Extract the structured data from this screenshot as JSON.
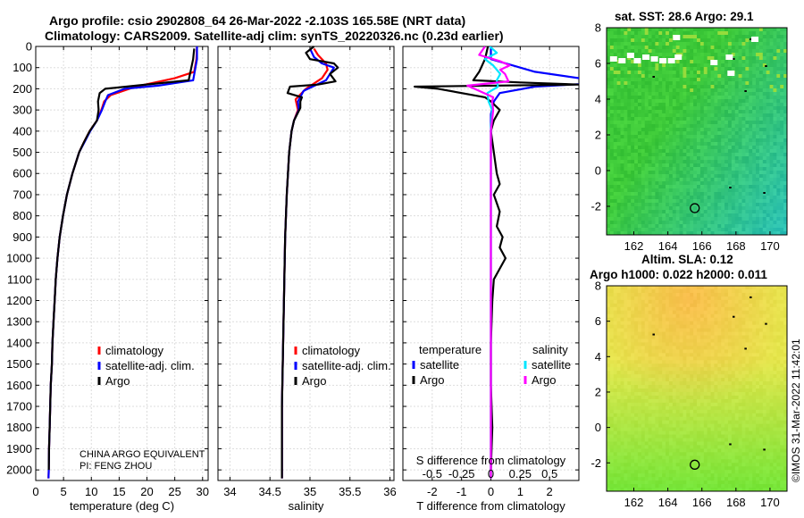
{
  "header": {
    "line1": "Argo profile: csio 2902808_64 26-Mar-2022 -2.103S 165.58E (NRT data)",
    "line2": "Climatology: CARS2009. Satellite-adj clim: synTS_20220326.nc (0.23d earlier)"
  },
  "copyright": "©IMOS 31-Mar-2022 11:42:01",
  "colors": {
    "climatology": "#ff0000",
    "satellite": "#0000ff",
    "argo": "#000000",
    "tdiff": "#000000",
    "sdiff_sat": "#00e5ff",
    "sdiff_argo": "#ff00ff",
    "grid": "#dddddd"
  },
  "chart_data": [
    {
      "id": "temperature",
      "type": "line",
      "xlabel": "temperature (deg C)",
      "xlim": [
        0,
        31
      ],
      "xticks": [
        0,
        5,
        10,
        15,
        20,
        25,
        30
      ],
      "ylim": [
        2050,
        0
      ],
      "yticks": [
        0,
        100,
        200,
        300,
        400,
        500,
        600,
        700,
        800,
        900,
        1000,
        1100,
        1200,
        1300,
        1400,
        1500,
        1600,
        1700,
        1800,
        1900,
        2000
      ],
      "legend": [
        "climatology",
        "satellite-adj. clim.",
        "Argo"
      ],
      "annotations": [
        "CHINA ARGO EQUIVALENT",
        "PI: FENG ZHOU"
      ],
      "series": [
        {
          "name": "climatology",
          "color": "#ff0000",
          "points": [
            [
              29,
              0
            ],
            [
              28.9,
              60
            ],
            [
              28.5,
              120
            ],
            [
              25,
              150
            ],
            [
              18,
              190
            ],
            [
              13.5,
              230
            ],
            [
              12.3,
              260
            ],
            [
              11.8,
              300
            ],
            [
              11,
              350
            ],
            [
              9.7,
              400
            ],
            [
              8.7,
              450
            ],
            [
              7.8,
              500
            ],
            [
              6.6,
              600
            ],
            [
              5.6,
              700
            ],
            [
              4.9,
              800
            ],
            [
              4.3,
              900
            ],
            [
              3.9,
              1000
            ],
            [
              3.6,
              1100
            ],
            [
              3.4,
              1200
            ],
            [
              3.2,
              1300
            ],
            [
              3,
              1400
            ],
            [
              2.9,
              1500
            ],
            [
              2.7,
              1600
            ],
            [
              2.6,
              1700
            ],
            [
              2.5,
              1800
            ],
            [
              2.4,
              1900
            ],
            [
              2.35,
              2000
            ],
            [
              2.3,
              2040
            ]
          ]
        },
        {
          "name": "satellite-adj. clim.",
          "color": "#0000ff",
          "points": [
            [
              29,
              0
            ],
            [
              29,
              60
            ],
            [
              28.3,
              160
            ],
            [
              22,
              185
            ],
            [
              16,
              200
            ],
            [
              13,
              230
            ],
            [
              12.5,
              260
            ],
            [
              11.9,
              300
            ],
            [
              11,
              350
            ],
            [
              9.8,
              400
            ],
            [
              8.8,
              450
            ],
            [
              7.8,
              500
            ],
            [
              6.6,
              600
            ],
            [
              5.6,
              700
            ],
            [
              4.9,
              800
            ],
            [
              4.3,
              900
            ],
            [
              3.9,
              1000
            ],
            [
              3.6,
              1100
            ],
            [
              3.4,
              1200
            ],
            [
              3.2,
              1300
            ],
            [
              3,
              1400
            ],
            [
              2.9,
              1500
            ],
            [
              2.7,
              1600
            ],
            [
              2.6,
              1700
            ],
            [
              2.5,
              1800
            ],
            [
              2.4,
              1900
            ],
            [
              2.35,
              2000
            ],
            [
              2.3,
              2040
            ]
          ]
        },
        {
          "name": "Argo",
          "color": "#000000",
          "points": [
            [
              28.5,
              10
            ],
            [
              28.3,
              60
            ],
            [
              27.5,
              160
            ],
            [
              18,
              185
            ],
            [
              12.5,
              200
            ],
            [
              11.5,
              220
            ],
            [
              11.2,
              260
            ],
            [
              11.3,
              300
            ],
            [
              11,
              350
            ],
            [
              9.7,
              400
            ],
            [
              8.7,
              450
            ],
            [
              7.8,
              500
            ],
            [
              6.6,
              600
            ],
            [
              5.6,
              700
            ],
            [
              4.9,
              800
            ],
            [
              4.3,
              900
            ],
            [
              3.9,
              1000
            ],
            [
              3.6,
              1100
            ],
            [
              3.4,
              1200
            ],
            [
              3.2,
              1300
            ],
            [
              3,
              1400
            ],
            [
              2.9,
              1500
            ],
            [
              2.7,
              1600
            ],
            [
              2.6,
              1700
            ],
            [
              2.5,
              1800
            ],
            [
              2.4,
              1900
            ],
            [
              2.35,
              2000
            ]
          ]
        }
      ]
    },
    {
      "id": "salinity",
      "type": "line",
      "xlabel": "salinity",
      "xlim": [
        33.85,
        36.05
      ],
      "xticks": [
        34,
        34.5,
        35,
        35.5,
        36
      ],
      "ylim": [
        2050,
        0
      ],
      "legend": [
        "climatology",
        "satellite-adj. clim.",
        "Argo"
      ],
      "series": [
        {
          "name": "climatology",
          "color": "#ff0000",
          "points": [
            [
              35.05,
              10
            ],
            [
              35.1,
              40
            ],
            [
              35.2,
              80
            ],
            [
              35.22,
              110
            ],
            [
              35.15,
              150
            ],
            [
              34.95,
              200
            ],
            [
              34.82,
              250
            ],
            [
              34.85,
              300
            ],
            [
              34.8,
              350
            ],
            [
              34.77,
              400
            ],
            [
              34.74,
              500
            ],
            [
              34.71,
              700
            ],
            [
              34.69,
              900
            ],
            [
              34.68,
              1100
            ],
            [
              34.67,
              1300
            ],
            [
              34.66,
              1500
            ],
            [
              34.65,
              1700
            ],
            [
              34.65,
              1900
            ],
            [
              34.65,
              2040
            ]
          ]
        },
        {
          "name": "satellite-adj. clim.",
          "color": "#0000ff",
          "points": [
            [
              35,
              10
            ],
            [
              35.05,
              50
            ],
            [
              35.15,
              80
            ],
            [
              35.3,
              100
            ],
            [
              35.2,
              160
            ],
            [
              34.92,
              210
            ],
            [
              34.85,
              260
            ],
            [
              34.86,
              300
            ],
            [
              34.8,
              350
            ],
            [
              34.77,
              400
            ],
            [
              34.74,
              500
            ],
            [
              34.71,
              700
            ],
            [
              34.69,
              900
            ],
            [
              34.68,
              1100
            ],
            [
              34.67,
              1300
            ],
            [
              34.66,
              1500
            ],
            [
              34.65,
              1700
            ],
            [
              34.65,
              1900
            ],
            [
              34.65,
              2040
            ]
          ]
        },
        {
          "name": "Argo",
          "color": "#000000",
          "points": [
            [
              35.05,
              0
            ],
            [
              34.95,
              30
            ],
            [
              35,
              60
            ],
            [
              35.3,
              80
            ],
            [
              35.35,
              100
            ],
            [
              35.25,
              130
            ],
            [
              35.32,
              165
            ],
            [
              35.1,
              180
            ],
            [
              34.75,
              190
            ],
            [
              34.72,
              220
            ],
            [
              34.9,
              240
            ],
            [
              34.88,
              260
            ],
            [
              34.88,
              290
            ],
            [
              34.8,
              350
            ],
            [
              34.77,
              400
            ],
            [
              34.74,
              500
            ],
            [
              34.71,
              700
            ],
            [
              34.69,
              900
            ],
            [
              34.68,
              1100
            ],
            [
              34.67,
              1300
            ],
            [
              34.66,
              1500
            ],
            [
              34.65,
              1700
            ],
            [
              34.65,
              1900
            ],
            [
              34.65,
              2040
            ]
          ]
        }
      ]
    },
    {
      "id": "difference",
      "type": "line",
      "xlabel": "T difference from climatology",
      "top_xlabel": "S difference from climatology",
      "xlim": [
        -3,
        3
      ],
      "xticks": [
        -2,
        -1,
        0,
        1,
        2
      ],
      "top_xticks": [
        "-0.5",
        "-0.25",
        "0",
        "0.25",
        "0.5"
      ],
      "top_xtick_values": [
        -0.5,
        -0.25,
        0,
        0.25,
        0.5
      ],
      "s_scale": 4,
      "ylim": [
        2050,
        0
      ],
      "legend_groups": [
        {
          "title": "temperature",
          "items": [
            "satellite",
            "Argo"
          ]
        },
        {
          "title": "salinity",
          "items": [
            "satellite",
            "Argo"
          ]
        }
      ],
      "series": [
        {
          "name": "temperature satellite",
          "color": "#0000ff",
          "points": [
            [
              0,
              0
            ],
            [
              0,
              60
            ],
            [
              1.5,
              120
            ],
            [
              4,
              170
            ],
            [
              1.5,
              190
            ],
            [
              0.3,
              220
            ],
            [
              0.1,
              260
            ],
            [
              0,
              320
            ],
            [
              0,
              500
            ],
            [
              0,
              800
            ],
            [
              0,
              1200
            ],
            [
              0,
              1600
            ],
            [
              0,
              2040
            ]
          ]
        },
        {
          "name": "temperature Argo",
          "color": "#000000",
          "points": [
            [
              -0.1,
              0
            ],
            [
              -0.2,
              60
            ],
            [
              -0.4,
              120
            ],
            [
              -0.6,
              160
            ],
            [
              1,
              170
            ],
            [
              3,
              180
            ],
            [
              -2.6,
              190
            ],
            [
              -1.8,
              200
            ],
            [
              -0.2,
              240
            ],
            [
              0,
              260
            ],
            [
              0.3,
              300
            ],
            [
              0.1,
              350
            ],
            [
              0,
              400
            ],
            [
              0.1,
              500
            ],
            [
              0.2,
              600
            ],
            [
              0.3,
              650
            ],
            [
              0.1,
              700
            ],
            [
              0.3,
              780
            ],
            [
              0.2,
              850
            ],
            [
              0.4,
              900
            ],
            [
              0.3,
              950
            ],
            [
              0.5,
              1000
            ],
            [
              0.3,
              1050
            ],
            [
              0.1,
              1100
            ],
            [
              0.05,
              1200
            ],
            [
              0,
              1400
            ],
            [
              0,
              1600
            ],
            [
              0.05,
              1800
            ],
            [
              0,
              2000
            ]
          ]
        },
        {
          "name": "salinity satellite",
          "color": "#00e5ff",
          "points": [
            [
              -0.01,
              0
            ],
            [
              0.05,
              30
            ],
            [
              -0.05,
              60
            ],
            [
              0.02,
              90
            ],
            [
              0.08,
              130
            ],
            [
              0.05,
              160
            ],
            [
              0.06,
              190
            ],
            [
              -0.03,
              220
            ],
            [
              -0.02,
              260
            ],
            [
              0.01,
              300
            ],
            [
              0,
              400
            ],
            [
              0,
              600
            ],
            [
              0,
              1000
            ],
            [
              0,
              1500
            ],
            [
              0,
              2040
            ]
          ]
        },
        {
          "name": "salinity Argo",
          "color": "#ff00ff",
          "points": [
            [
              -0.05,
              0
            ],
            [
              -0.1,
              40
            ],
            [
              0.08,
              70
            ],
            [
              0.16,
              90
            ],
            [
              0.08,
              110
            ],
            [
              0.12,
              130
            ],
            [
              0.15,
              165
            ],
            [
              -0.2,
              185
            ],
            [
              -0.1,
              210
            ],
            [
              0.02,
              240
            ],
            [
              0.01,
              260
            ],
            [
              0.02,
              300
            ],
            [
              0,
              400
            ],
            [
              0,
              600
            ],
            [
              0,
              1000
            ],
            [
              0,
              1500
            ],
            [
              0,
              2040
            ]
          ]
        }
      ]
    },
    {
      "id": "sst-map",
      "type": "heatmap",
      "title": "sat. SST: 28.6 Argo: 29.1",
      "xlim": [
        160.4,
        171
      ],
      "ylim": [
        -3.6,
        8
      ],
      "xticks": [
        162,
        164,
        166,
        168,
        170
      ],
      "yticks": [
        -2,
        0,
        2,
        4,
        6,
        8
      ],
      "profile_location": [
        165.58,
        -2.103
      ]
    },
    {
      "id": "sla-map",
      "type": "heatmap",
      "title_line1": "Altim. SLA: 0.12",
      "title_line2": "Argo h1000: 0.022 h2000: 0.011",
      "xlim": [
        160.4,
        171
      ],
      "ylim": [
        -3.6,
        8
      ],
      "xticks": [
        162,
        164,
        166,
        168,
        170
      ],
      "yticks": [
        -2,
        0,
        2,
        4,
        6,
        8
      ],
      "profile_location": [
        165.58,
        -2.103
      ]
    }
  ]
}
